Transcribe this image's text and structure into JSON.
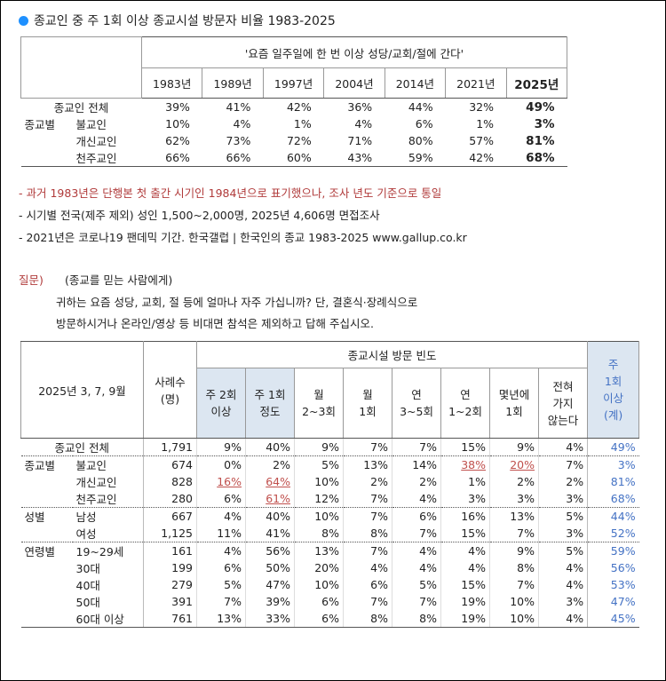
{
  "title": "종교인 중 주 1회 이상 종교시설 방문자 비율 1983-2025",
  "table1": {
    "caption": "'요즘 일주일에 한 번 이상 성당/교회/절에 간다'",
    "years": [
      "1983년",
      "1989년",
      "1997년",
      "2004년",
      "2014년",
      "2021년",
      "2025년"
    ],
    "bold_last_column": true,
    "rows": [
      {
        "label": "종교인 전체",
        "values": [
          "39%",
          "41%",
          "42%",
          "36%",
          "44%",
          "32%",
          "49%"
        ]
      },
      {
        "group": "종교별",
        "label": "불교인",
        "values": [
          "10%",
          "4%",
          "1%",
          "4%",
          "6%",
          "1%",
          "3%"
        ]
      },
      {
        "label": "개신교인",
        "values": [
          "62%",
          "73%",
          "72%",
          "71%",
          "80%",
          "57%",
          "81%"
        ]
      },
      {
        "label": "천주교인",
        "values": [
          "66%",
          "66%",
          "60%",
          "43%",
          "59%",
          "42%",
          "68%"
        ]
      }
    ]
  },
  "notes": [
    "- 과거 1983년은 단행본 첫 출간 시기인 1984년으로 표기했으나, 조사 년도 기준으로 통일",
    "- 시기별 전국(제주 제외) 성인 1,500~2,000명, 2025년 4,606명 면접조사",
    "- 2021년은 코로나19 팬데믹 기간. 한국갤럽 | 한국인의 종교 1983-2025 www.gallup.co.kr"
  ],
  "question": {
    "marker": "질문)",
    "lines": [
      "(종교를 믿는 사람에게)",
      "귀하는 요즘 성당, 교회, 절 등에 얼마나 자주 가십니까? 단, 결혼식·장례식으로",
      "방문하시거나 온라인/영상 등 비대면 참석은 제외하고 답해 주십시오."
    ]
  },
  "table2": {
    "corner": "2025년 3, 7, 9월",
    "n_header": [
      "사례수",
      "(명)"
    ],
    "group_header": "종교시설 방문 빈도",
    "columns": [
      [
        "주 2회",
        "이상"
      ],
      [
        "주 1회",
        "정도"
      ],
      [
        "월",
        "2~3회"
      ],
      [
        "월",
        "1회"
      ],
      [
        "연",
        "3~5회"
      ],
      [
        "연",
        "1~2회"
      ],
      [
        "몇년에",
        "1회"
      ],
      [
        "전혀",
        "가지",
        "않는다"
      ]
    ],
    "total_header": [
      "주",
      "1회",
      "이상",
      "(계)"
    ],
    "highlight_columns": [
      0,
      1
    ],
    "rows": [
      {
        "label": "종교인 전체",
        "n": "1,791",
        "values": [
          "9%",
          "40%",
          "9%",
          "7%",
          "7%",
          "15%",
          "9%",
          "4%"
        ],
        "total": "49%"
      },
      {
        "group": "종교별",
        "label": "불교인",
        "n": "674",
        "values": [
          "0%",
          "2%",
          "5%",
          "13%",
          "14%",
          "38%",
          "20%",
          "7%"
        ],
        "total": "3%",
        "underline": [
          5,
          6
        ]
      },
      {
        "label": "개신교인",
        "n": "828",
        "values": [
          "16%",
          "64%",
          "10%",
          "2%",
          "2%",
          "1%",
          "2%",
          "2%"
        ],
        "total": "81%",
        "underline": [
          0,
          1
        ]
      },
      {
        "label": "천주교인",
        "n": "280",
        "values": [
          "6%",
          "61%",
          "12%",
          "7%",
          "4%",
          "3%",
          "3%",
          "3%"
        ],
        "total": "68%",
        "underline": [
          1
        ]
      },
      {
        "group": "성별",
        "label": "남성",
        "n": "667",
        "values": [
          "4%",
          "40%",
          "10%",
          "7%",
          "6%",
          "16%",
          "13%",
          "5%"
        ],
        "total": "44%"
      },
      {
        "label": "여성",
        "n": "1,125",
        "values": [
          "11%",
          "41%",
          "8%",
          "8%",
          "7%",
          "15%",
          "7%",
          "3%"
        ],
        "total": "52%"
      },
      {
        "group": "연령별",
        "label": "19~29세",
        "n": "161",
        "values": [
          "4%",
          "56%",
          "13%",
          "7%",
          "4%",
          "4%",
          "9%",
          "5%"
        ],
        "total": "59%"
      },
      {
        "label": "30대",
        "n": "199",
        "values": [
          "6%",
          "50%",
          "20%",
          "4%",
          "4%",
          "4%",
          "8%",
          "4%"
        ],
        "total": "56%"
      },
      {
        "label": "40대",
        "n": "279",
        "values": [
          "5%",
          "47%",
          "10%",
          "6%",
          "5%",
          "15%",
          "7%",
          "4%"
        ],
        "total": "53%"
      },
      {
        "label": "50대",
        "n": "391",
        "values": [
          "7%",
          "39%",
          "6%",
          "7%",
          "7%",
          "19%",
          "10%",
          "3%"
        ],
        "total": "47%"
      },
      {
        "label": "60대 이상",
        "n": "761",
        "values": [
          "13%",
          "33%",
          "6%",
          "8%",
          "8%",
          "19%",
          "10%",
          "4%"
        ],
        "total": "45%"
      }
    ]
  }
}
